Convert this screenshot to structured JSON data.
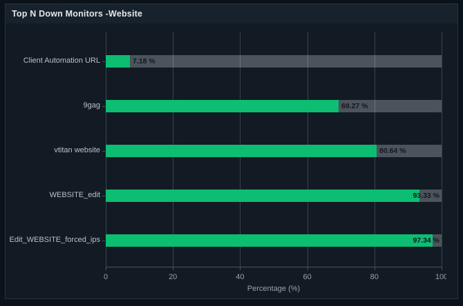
{
  "header": {
    "title": "Top N Down Monitors -Website"
  },
  "chart_data": {
    "type": "bar",
    "orientation": "horizontal",
    "title": "Top N Down Monitors -Website",
    "categories": [
      "Client Automation URL",
      "9gag",
      "vtitan website",
      "WEBSITE_edit",
      "Edit_WEBSITE_forced_ips"
    ],
    "values": [
      7.18,
      69.27,
      80.64,
      93.33,
      97.34
    ],
    "value_labels": [
      "7.18 %",
      "69.27 %",
      "80.64 %",
      "93.33 %",
      "97.34 %"
    ],
    "xlabel": "Percentage (%)",
    "ylabel": "",
    "x_tick_labels": [
      "0",
      "20",
      "40",
      "60",
      "80",
      "100"
    ],
    "x_ticks": [
      0,
      20,
      40,
      60,
      80,
      100
    ],
    "xlim": [
      0,
      100
    ],
    "grid": "vertical",
    "legend": "none",
    "colors": {
      "bar_fill": "#0cbe72",
      "bar_track": "rgba(255,255,255,0.25)",
      "panel_background": "#121a23",
      "header_background": "#17222c",
      "page_background": "#0c121a",
      "gridline": "#3a434d",
      "value_label_text": "#10171e",
      "category_label_text": "#bac1c7",
      "tick_label_text": "#99a2a9"
    }
  }
}
